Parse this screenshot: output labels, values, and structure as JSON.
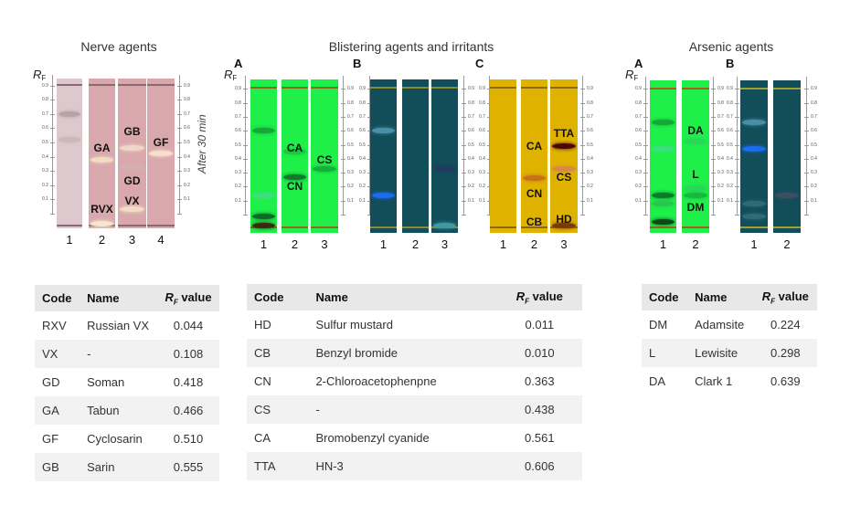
{
  "titles": {
    "nerve": "Nerve agents",
    "blister": "Blistering agents and irritants",
    "arsenic": "Arsenic agents"
  },
  "rf_label": {
    "r": "R",
    "sub": "F"
  },
  "after_label": "After 30 min",
  "axis_ticks": [
    "0.9",
    "0.8",
    "0.7",
    "0.6",
    "0.5",
    "0.4",
    "0.3",
    "0.2",
    "0.1"
  ],
  "colors": {
    "nerve_plate": "#d9a8ad",
    "nerve_lane1": "#ddc9cd",
    "green_plate": "#1ef049",
    "blue_plate": "#124d5a",
    "yellow_plate": "#e0b200"
  },
  "panels": [
    {
      "id": "nerve",
      "letter": "",
      "lanes": [
        {
          "num": "1",
          "spots": [
            {
              "rf": 0.7,
              "color": "#b7a3a7"
            },
            {
              "rf": 0.52,
              "color": "#cdb6ba"
            }
          ],
          "labels": []
        },
        {
          "num": "2",
          "spots": [
            {
              "rf": 0.38,
              "color": "#f3dcc5"
            },
            {
              "rf": -0.07,
              "color": "#f7e7c9"
            }
          ],
          "labels": [
            "GA",
            "RVX"
          ]
        },
        {
          "num": "3",
          "spots": [
            {
              "rf": 0.46,
              "color": "#f0d6c7"
            },
            {
              "rf": 0.33,
              "color": "#d4b0b0"
            },
            {
              "rf": 0.03,
              "color": "#f3dcc5"
            }
          ],
          "labels": [
            "GB",
            "GD",
            "VX"
          ]
        },
        {
          "num": "4",
          "spots": [
            {
              "rf": 0.42,
              "color": "#f7e1cb"
            }
          ],
          "labels": [
            "GF"
          ]
        }
      ]
    },
    {
      "id": "blisterA",
      "letter": "A",
      "lanes": [
        {
          "num": "1",
          "spots": [
            {
              "rf": 0.6,
              "color": "#14a838"
            },
            {
              "rf": 0.14,
              "color": "#3ae07a"
            },
            {
              "rf": -0.01,
              "color": "#0d6a26"
            },
            {
              "rf": -0.08,
              "color": "#3a2a10"
            }
          ],
          "labels": []
        },
        {
          "num": "2",
          "spots": [
            {
              "rf": 0.45,
              "color": "#18c840"
            },
            {
              "rf": 0.27,
              "color": "#0e7a2a"
            }
          ],
          "labels": [
            "CA",
            "CN"
          ]
        },
        {
          "num": "3",
          "spots": [
            {
              "rf": 0.33,
              "color": "#13b03a"
            }
          ],
          "labels": [
            "CS"
          ]
        }
      ]
    },
    {
      "id": "blisterB",
      "letter": "B",
      "lanes": [
        {
          "num": "1",
          "spots": [
            {
              "rf": 0.6,
              "color": "#4a8fa8"
            },
            {
              "rf": 0.14,
              "color": "#1a6cf0"
            }
          ],
          "labels": []
        },
        {
          "num": "2",
          "spots": [],
          "labels": []
        },
        {
          "num": "3",
          "spots": [
            {
              "rf": 0.33,
              "color": "#223a60"
            },
            {
              "rf": -0.08,
              "color": "#3f9aa0"
            }
          ],
          "labels": []
        }
      ]
    },
    {
      "id": "blisterC",
      "letter": "C",
      "lanes": [
        {
          "num": "1",
          "spots": [],
          "labels": []
        },
        {
          "num": "2",
          "spots": [
            {
              "rf": 0.26,
              "color": "#c8701a"
            }
          ],
          "labels": [
            "CA",
            "CN",
            "CB"
          ]
        },
        {
          "num": "3",
          "spots": [
            {
              "rf": 0.49,
              "color": "#4a0808"
            },
            {
              "rf": 0.33,
              "color": "#d88a40"
            },
            {
              "rf": -0.08,
              "color": "#7a3a10"
            }
          ],
          "labels": [
            "TTA",
            "CS",
            "HD"
          ]
        }
      ]
    },
    {
      "id": "arsenicA",
      "letter": "A",
      "lanes": [
        {
          "num": "1",
          "spots": [
            {
              "rf": 0.66,
              "color": "#13a838"
            },
            {
              "rf": 0.47,
              "color": "#3ae07a"
            },
            {
              "rf": 0.14,
              "color": "#0c7a28"
            },
            {
              "rf": 0.08,
              "color": "#28c850"
            },
            {
              "rf": -0.05,
              "color": "#0a4a18"
            }
          ],
          "labels": []
        },
        {
          "num": "2",
          "spots": [
            {
              "rf": 0.52,
              "color": "#28d858"
            },
            {
              "rf": 0.19,
              "color": "#28d858"
            },
            {
              "rf": 0.14,
              "color": "#18b840"
            }
          ],
          "labels": [
            "DA",
            "L",
            "DM"
          ]
        }
      ]
    },
    {
      "id": "arsenicB",
      "letter": "B",
      "lanes": [
        {
          "num": "1",
          "spots": [
            {
              "rf": 0.66,
              "color": "#4a8fa8"
            },
            {
              "rf": 0.47,
              "color": "#1a6cf0"
            },
            {
              "rf": 0.08,
              "color": "#2e6a78"
            },
            {
              "rf": -0.01,
              "color": "#2e6a78"
            }
          ],
          "labels": []
        },
        {
          "num": "2",
          "spots": [
            {
              "rf": 0.14,
              "color": "#3a5060"
            }
          ],
          "labels": []
        }
      ]
    }
  ],
  "tables": {
    "headers": {
      "code": "Code",
      "name": "Name",
      "rf_r": "R",
      "rf_sub": "F",
      "rf_value": " value"
    },
    "nerve": [
      [
        "RXV",
        "Russian VX",
        "0.044"
      ],
      [
        "VX",
        "-",
        "0.108"
      ],
      [
        "GD",
        "Soman",
        "0.418"
      ],
      [
        "GA",
        "Tabun",
        "0.466"
      ],
      [
        "GF",
        "Cyclosarin",
        "0.510"
      ],
      [
        "GB",
        "Sarin",
        "0.555"
      ]
    ],
    "blister": [
      [
        "HD",
        "Sulfur mustard",
        "0.011"
      ],
      [
        "CB",
        "Benzyl bromide",
        "0.010"
      ],
      [
        "CN",
        "2-Chloroacetophenpne",
        "0.363"
      ],
      [
        "CS",
        "-",
        "0.438"
      ],
      [
        "CA",
        "Bromobenzyl cyanide",
        "0.561"
      ],
      [
        "TTA",
        "HN-3",
        "0.606"
      ]
    ],
    "arsenic": [
      [
        "DM",
        "Adamsite",
        "0.224"
      ],
      [
        "L",
        "Lewisite",
        "0.298"
      ],
      [
        "DA",
        "Clark 1",
        "0.639"
      ]
    ]
  }
}
